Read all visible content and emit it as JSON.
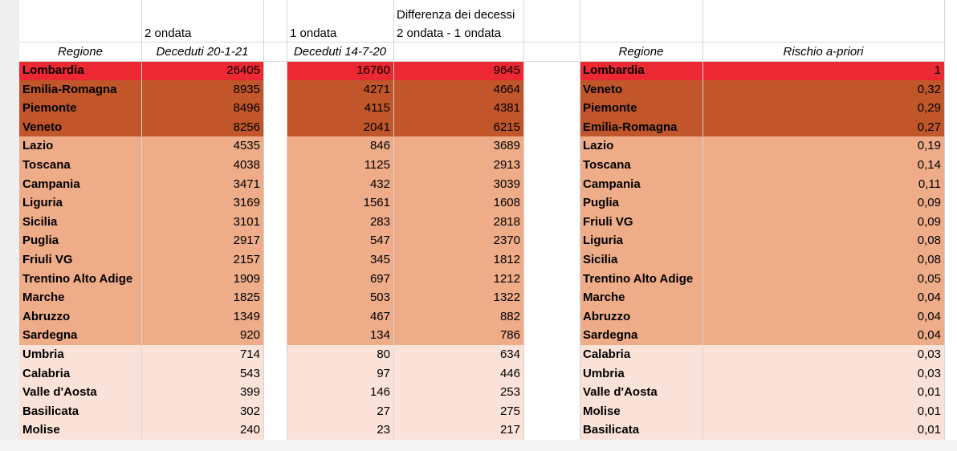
{
  "colors": {
    "red": "#ec2833",
    "dark": "#c0562a",
    "mid": "#eeac88",
    "light": "#fbe2d8",
    "grid": "#d4d4d4"
  },
  "headers": {
    "regione": "Regione",
    "wave2_title": "2 ondata",
    "wave2_sub": "Deceduti 20-1-21",
    "wave1_title": "1 ondata",
    "wave1_sub": "Deceduti 14-7-20",
    "diff_line1": "Differenza dei decessi",
    "diff_line2": "2 ondata - 1 ondata",
    "regione_right": "Regione",
    "rischio": "Rischio a-priori"
  },
  "left_rows": [
    {
      "region": "Lombardia",
      "wave2": "26405",
      "wave1": "16760",
      "diff": "9645",
      "tier": "red"
    },
    {
      "region": "Emilia-Romagna",
      "wave2": "8935",
      "wave1": "4271",
      "diff": "4664",
      "tier": "dark"
    },
    {
      "region": "Piemonte",
      "wave2": "8496",
      "wave1": "4115",
      "diff": "4381",
      "tier": "dark"
    },
    {
      "region": "Veneto",
      "wave2": "8256",
      "wave1": "2041",
      "diff": "6215",
      "tier": "dark"
    },
    {
      "region": "Lazio",
      "wave2": "4535",
      "wave1": "846",
      "diff": "3689",
      "tier": "mid"
    },
    {
      "region": "Toscana",
      "wave2": "4038",
      "wave1": "1125",
      "diff": "2913",
      "tier": "mid"
    },
    {
      "region": "Campania",
      "wave2": "3471",
      "wave1": "432",
      "diff": "3039",
      "tier": "mid"
    },
    {
      "region": "Liguria",
      "wave2": "3169",
      "wave1": "1561",
      "diff": "1608",
      "tier": "mid"
    },
    {
      "region": "Sicilia",
      "wave2": "3101",
      "wave1": "283",
      "diff": "2818",
      "tier": "mid"
    },
    {
      "region": "Puglia",
      "wave2": "2917",
      "wave1": "547",
      "diff": "2370",
      "tier": "mid"
    },
    {
      "region": "Friuli VG",
      "wave2": "2157",
      "wave1": "345",
      "diff": "1812",
      "tier": "mid"
    },
    {
      "region": "Trentino Alto Adige",
      "wave2": "1909",
      "wave1": "697",
      "diff": "1212",
      "tier": "mid"
    },
    {
      "region": "Marche",
      "wave2": "1825",
      "wave1": "503",
      "diff": "1322",
      "tier": "mid"
    },
    {
      "region": "Abruzzo",
      "wave2": "1349",
      "wave1": "467",
      "diff": "882",
      "tier": "mid"
    },
    {
      "region": "Sardegna",
      "wave2": "920",
      "wave1": "134",
      "diff": "786",
      "tier": "mid"
    },
    {
      "region": "Umbria",
      "wave2": "714",
      "wave1": "80",
      "diff": "634",
      "tier": "light"
    },
    {
      "region": "Calabria",
      "wave2": "543",
      "wave1": "97",
      "diff": "446",
      "tier": "light"
    },
    {
      "region": "Valle d'Aosta",
      "wave2": "399",
      "wave1": "146",
      "diff": "253",
      "tier": "light"
    },
    {
      "region": "Basilicata",
      "wave2": "302",
      "wave1": "27",
      "diff": "275",
      "tier": "light"
    },
    {
      "region": "Molise",
      "wave2": "240",
      "wave1": "23",
      "diff": "217",
      "tier": "light"
    }
  ],
  "right_rows": [
    {
      "region": "Lombardia",
      "risk": "1",
      "tier": "red"
    },
    {
      "region": "Veneto",
      "risk": "0,32",
      "tier": "dark"
    },
    {
      "region": "Piemonte",
      "risk": "0,29",
      "tier": "dark"
    },
    {
      "region": "Emilia-Romagna",
      "risk": "0,27",
      "tier": "dark"
    },
    {
      "region": "Lazio",
      "risk": "0,19",
      "tier": "mid"
    },
    {
      "region": "Toscana",
      "risk": "0,14",
      "tier": "mid"
    },
    {
      "region": "Campania",
      "risk": "0,11",
      "tier": "mid"
    },
    {
      "region": "Puglia",
      "risk": "0,09",
      "tier": "mid"
    },
    {
      "region": "Friuli VG",
      "risk": "0,09",
      "tier": "mid"
    },
    {
      "region": "Liguria",
      "risk": "0,08",
      "tier": "mid"
    },
    {
      "region": "Sicilia",
      "risk": "0,08",
      "tier": "mid"
    },
    {
      "region": "Trentino Alto Adige",
      "risk": "0,05",
      "tier": "mid"
    },
    {
      "region": "Marche",
      "risk": "0,04",
      "tier": "mid"
    },
    {
      "region": "Abruzzo",
      "risk": "0,04",
      "tier": "mid"
    },
    {
      "region": "Sardegna",
      "risk": "0,04",
      "tier": "mid"
    },
    {
      "region": "Calabria",
      "risk": "0,03",
      "tier": "light"
    },
    {
      "region": "Umbria",
      "risk": "0,03",
      "tier": "light"
    },
    {
      "region": "Valle d'Aosta",
      "risk": "0,01",
      "tier": "light"
    },
    {
      "region": "Molise",
      "risk": "0,01",
      "tier": "light"
    },
    {
      "region": "Basilicata",
      "risk": "0,01",
      "tier": "light"
    }
  ]
}
